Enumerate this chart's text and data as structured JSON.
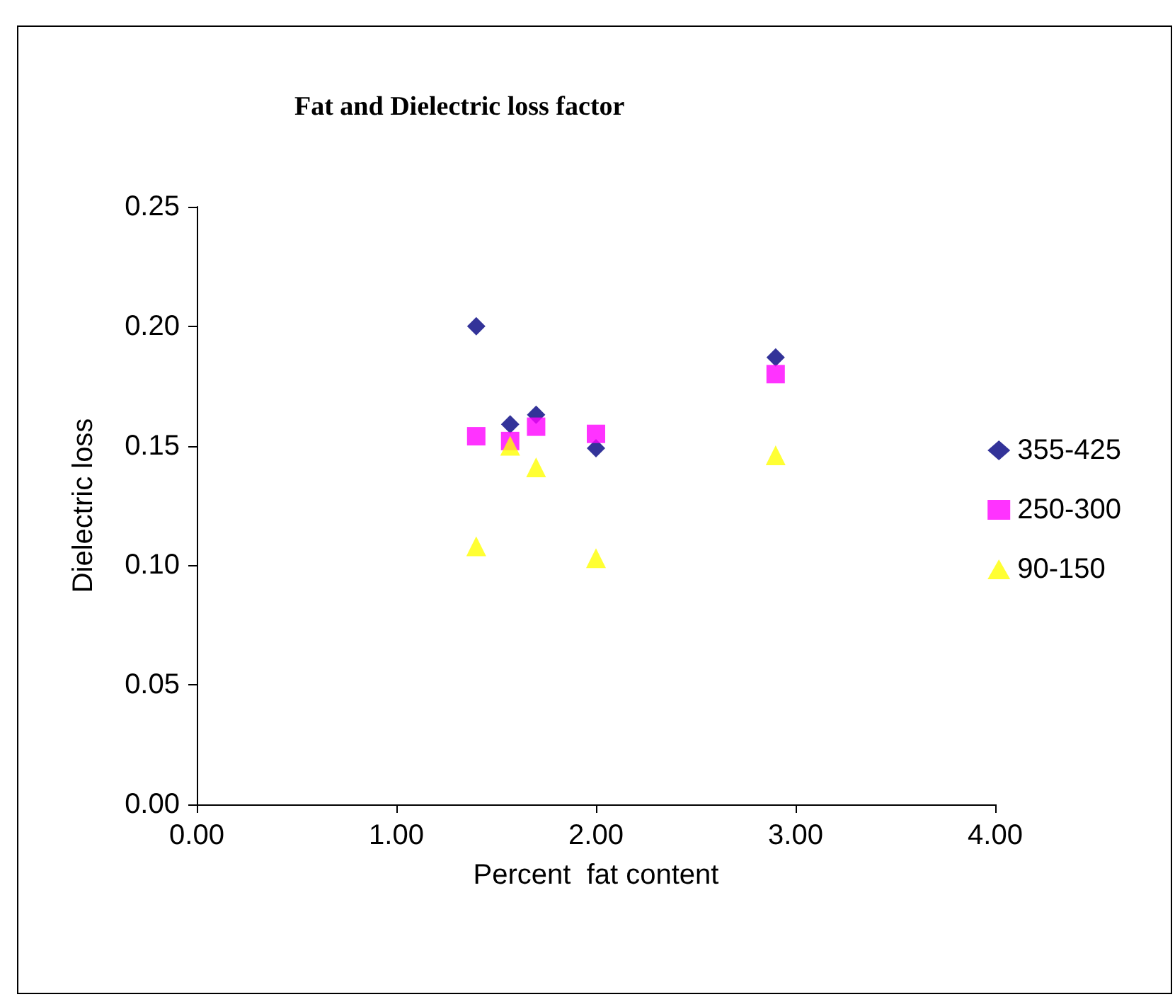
{
  "chart_data": {
    "type": "scatter",
    "title": "Fat and Dielectric loss factor",
    "xlabel": "Percent  fat content",
    "ylabel": "Dielectric loss",
    "x": [
      1.4,
      1.57,
      1.7,
      2.0,
      2.9
    ],
    "series": [
      {
        "name": "355-425",
        "color": "#000080",
        "marker": "diamond",
        "values": [
          0.2,
          0.159,
          0.163,
          0.149,
          0.187
        ]
      },
      {
        "name": "250-300",
        "color": "#ff00ff",
        "marker": "square",
        "values": [
          0.154,
          0.152,
          0.158,
          0.155,
          0.18
        ]
      },
      {
        "name": "90-150",
        "color": "#ffff00",
        "marker": "triangle",
        "values": [
          0.108,
          0.15,
          0.141,
          0.103,
          0.146
        ]
      }
    ],
    "xlim": [
      0,
      4
    ],
    "xticks": [
      {
        "value": 0,
        "label": "0.00"
      },
      {
        "value": 1,
        "label": "1.00"
      },
      {
        "value": 2,
        "label": "2.00"
      },
      {
        "value": 3,
        "label": "3.00"
      },
      {
        "value": 4,
        "label": "4.00"
      }
    ],
    "ylim": [
      0,
      0.25
    ],
    "yticks": [
      {
        "value": 0,
        "label": "0.00"
      },
      {
        "value": 0.05,
        "label": "0.05"
      },
      {
        "value": 0.1,
        "label": "0.10"
      },
      {
        "value": 0.15,
        "label": "0.15"
      },
      {
        "value": 0.2,
        "label": "0.20"
      },
      {
        "value": 0.25,
        "label": "0.25"
      }
    ],
    "grid": false,
    "legend": "right"
  }
}
